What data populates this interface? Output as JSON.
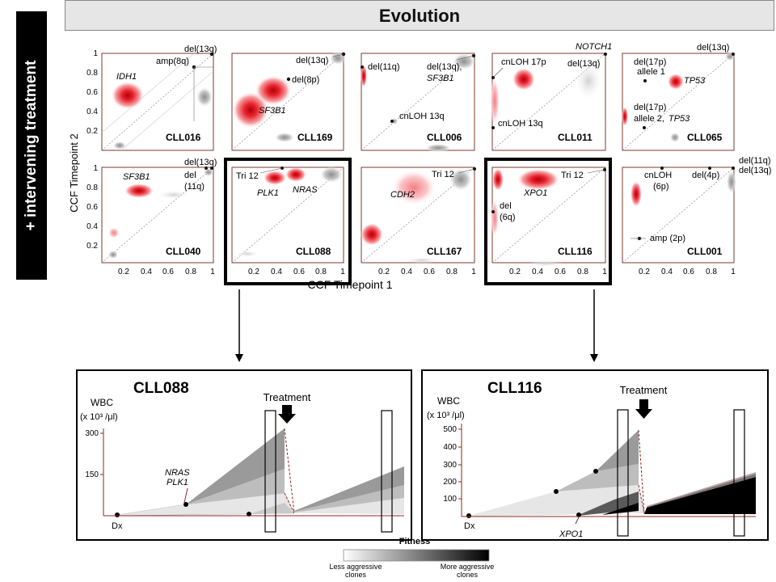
{
  "header": {
    "title": "Evolution"
  },
  "side_label": "+ intervening treatment",
  "axes": {
    "y_title": "CCF Timepoint 2",
    "x_title": "CCF Timepoint 1",
    "y_ticks": [
      "1",
      "0.8",
      "0.6",
      "0.4",
      "0.2"
    ],
    "x_ticks": [
      "0.2",
      "0.4",
      "0.6",
      "0.8",
      "1"
    ]
  },
  "panels": [
    {
      "id": "CLL016",
      "labels": [
        "IDH1",
        "amp(8q)",
        "del(13q)"
      ]
    },
    {
      "id": "CLL169",
      "labels": [
        "del(13q)",
        "del(8p)",
        "SF3B1"
      ]
    },
    {
      "id": "CLL006",
      "labels": [
        "del(11q)",
        "del(13q),",
        "SF3B1",
        "cnLOH 13q"
      ]
    },
    {
      "id": "CLL011",
      "labels": [
        "NOTCH1",
        "cnLOH 17p",
        "del(13q)",
        "cnLOH 13q"
      ]
    },
    {
      "id": "CLL065",
      "labels": [
        "del(13q)",
        "del(17p)",
        "allele 1",
        "TP53",
        "del(17p)",
        "allele 2,",
        "TP53"
      ]
    },
    {
      "id": "CLL040",
      "labels": [
        "del(13q)",
        "SF3B1",
        "del",
        "(11q)"
      ]
    },
    {
      "id": "CLL088",
      "labels": [
        "Tri 12",
        "PLK1",
        "NRAS"
      ]
    },
    {
      "id": "CLL167",
      "labels": [
        "Tri 12",
        "CDH2"
      ]
    },
    {
      "id": "CLL116",
      "labels": [
        "Tri 12",
        "XPO1",
        "del",
        "(6q)"
      ]
    },
    {
      "id": "CLL001",
      "labels": [
        "del(11q)",
        "del(13q)",
        "cnLOH",
        "(6p)",
        "del(4p)",
        "amp (2p)"
      ]
    }
  ],
  "bottom_left": {
    "title": "CLL088",
    "wbc_label": "WBC",
    "wbc_unit": "(x 10³ /μl)",
    "y_ticks": [
      "300",
      "150"
    ],
    "treatment": "Treatment",
    "dx": "Dx",
    "mutation_1": "NRAS",
    "mutation_2": "PLK1"
  },
  "bottom_right": {
    "title": "CLL116",
    "wbc_label": "WBC",
    "wbc_unit": "(x 10³ /μl)",
    "y_ticks": [
      "500",
      "400",
      "300",
      "200",
      "100"
    ],
    "treatment": "Treatment",
    "dx": "Dx",
    "mutation_1": "XPO1"
  },
  "legend": {
    "title": "Fitness",
    "left": "Less aggressive clones",
    "left_1": "Less aggressive",
    "left_2": "clones",
    "right_1": "More aggressive",
    "right_2": "clones"
  },
  "colors": {
    "red": "#e0202a",
    "dark_red": "#8b2a1e",
    "grey": "#9a9a9a",
    "frame": "#7a3b2e"
  }
}
